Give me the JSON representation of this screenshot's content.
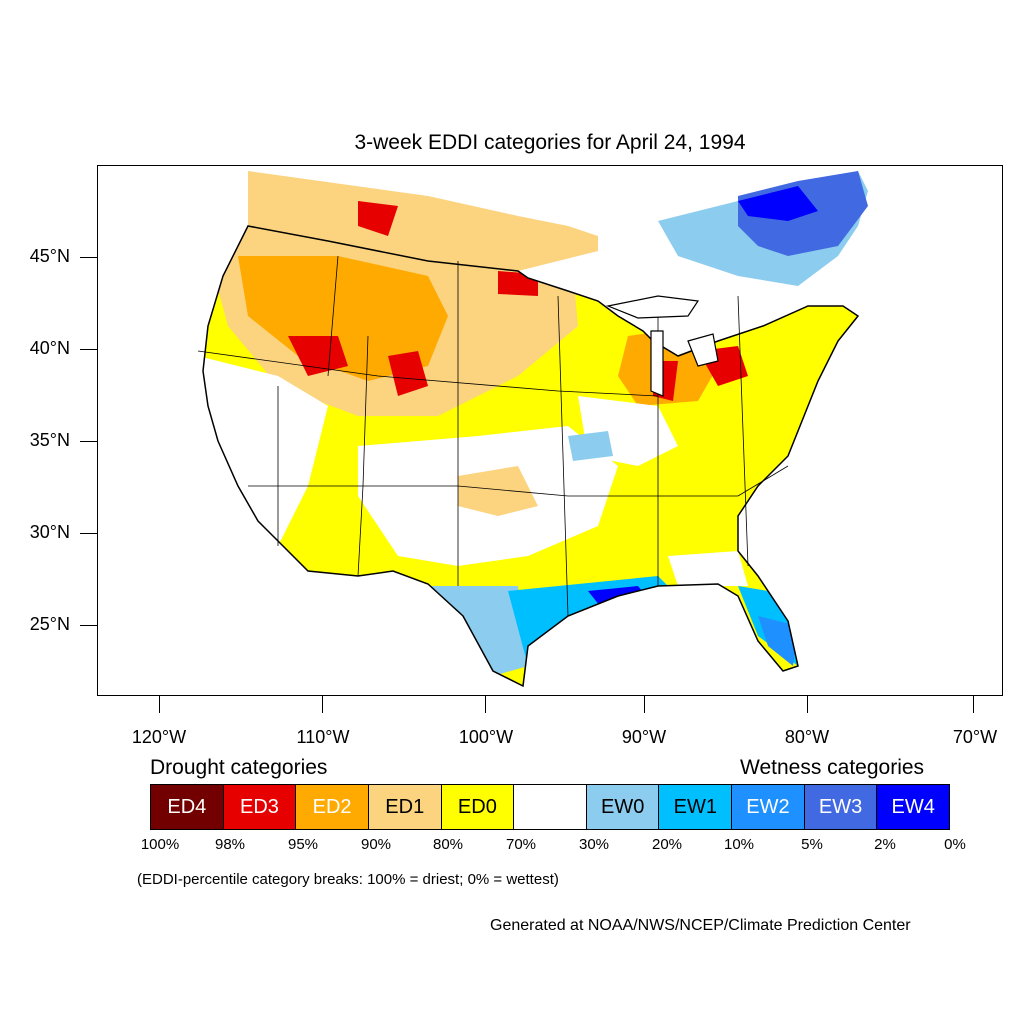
{
  "title": "3-week EDDI categories for April 24, 1994",
  "map": {
    "lat_labels": [
      "45°N",
      "40°N",
      "35°N",
      "30°N",
      "25°N"
    ],
    "lon_labels": [
      "120°W",
      "110°W",
      "100°W",
      "90°W",
      "80°W",
      "70°W"
    ]
  },
  "legend": {
    "drought_heading": "Drought categories",
    "wetness_heading": "Wetness categories",
    "categories": [
      {
        "label": "ED4",
        "color": "#730000",
        "text_color": "#ffffff"
      },
      {
        "label": "ED3",
        "color": "#e60000",
        "text_color": "#ffffff"
      },
      {
        "label": "ED2",
        "color": "#ffaa00",
        "text_color": "#ffffff"
      },
      {
        "label": "ED1",
        "color": "#fcd37f",
        "text_color": "#000000"
      },
      {
        "label": "ED0",
        "color": "#ffff00",
        "text_color": "#000000"
      },
      {
        "label": "",
        "color": "#ffffff",
        "text_color": "#000000"
      },
      {
        "label": "EW0",
        "color": "#8ccdef",
        "text_color": "#000000"
      },
      {
        "label": "EW1",
        "color": "#00bfff",
        "text_color": "#000000"
      },
      {
        "label": "EW2",
        "color": "#1e90ff",
        "text_color": "#ffffff"
      },
      {
        "label": "EW3",
        "color": "#4169e1",
        "text_color": "#ffffff"
      },
      {
        "label": "EW4",
        "color": "#0000ff",
        "text_color": "#ffffff"
      }
    ],
    "percent_breaks": [
      "100%",
      "98%",
      "95%",
      "90%",
      "80%",
      "70%",
      "30%",
      "20%",
      "10%",
      "5%",
      "2%",
      "0%"
    ]
  },
  "note": "(EDDI-percentile category breaks: 100% = driest; 0% = wettest)",
  "credit": "Generated at NOAA/NWS/NCEP/Climate Prediction Center"
}
